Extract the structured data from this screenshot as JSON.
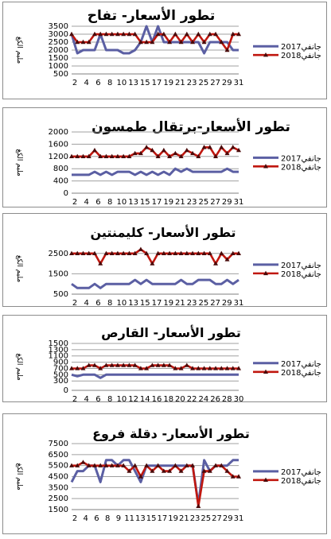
{
  "chart_data": [
    {
      "type": "line",
      "title": "تطور الأسعار- تفاح",
      "ylabel": "مليم الكغ",
      "x": [
        2,
        3,
        4,
        5,
        6,
        7,
        8,
        9,
        10,
        11,
        12,
        13,
        14,
        15,
        16,
        17,
        18,
        19,
        20,
        21,
        22,
        23,
        24,
        25,
        26,
        27,
        28,
        29,
        30,
        31
      ],
      "x_ticks": [
        2,
        4,
        6,
        8,
        10,
        13,
        15,
        17,
        19,
        21,
        23,
        25,
        27,
        29,
        31
      ],
      "ylim": [
        500,
        3500
      ],
      "y_ticks": [
        500,
        1000,
        1500,
        2000,
        2500,
        3000,
        3500
      ],
      "legend": "right",
      "series": [
        {
          "name": "جانفي2017",
          "values": [
            3000,
            1800,
            2000,
            2000,
            2000,
            3000,
            2000,
            2000,
            2000,
            1800,
            1800,
            2000,
            2500,
            3500,
            2500,
            3500,
            2500,
            2500,
            2500,
            2500,
            2500,
            2500,
            2500,
            1800,
            2500,
            2500,
            2500,
            2500,
            2000,
            2000
          ]
        },
        {
          "name": "جانفي2018",
          "values": [
            3000,
            2500,
            2500,
            2500,
            3000,
            3000,
            3000,
            3000,
            3000,
            3000,
            3000,
            3000,
            2500,
            2500,
            2500,
            3000,
            3000,
            2500,
            3000,
            2500,
            3000,
            2500,
            3000,
            2500,
            3000,
            3000,
            2500,
            2000,
            3000,
            3000
          ]
        }
      ]
    },
    {
      "type": "line",
      "title": "تطور الأسعار-برتقال طمسون",
      "ylabel": "مليم الكغ",
      "x": [
        2,
        3,
        4,
        5,
        6,
        7,
        8,
        9,
        10,
        11,
        12,
        13,
        14,
        15,
        16,
        17,
        18,
        19,
        20,
        21,
        22,
        23,
        24,
        25,
        26,
        27,
        28,
        29,
        30,
        31
      ],
      "x_ticks": [
        2,
        4,
        6,
        8,
        10,
        13,
        15,
        17,
        19,
        21,
        23,
        25,
        27,
        29,
        31
      ],
      "ylim": [
        0,
        2000
      ],
      "y_ticks": [
        0,
        400,
        800,
        1200,
        1600,
        2000
      ],
      "legend": "right",
      "series": [
        {
          "name": "جانفي2017",
          "values": [
            600,
            600,
            600,
            600,
            700,
            600,
            700,
            600,
            700,
            700,
            700,
            600,
            700,
            600,
            700,
            600,
            700,
            600,
            800,
            700,
            800,
            700,
            700,
            700,
            700,
            700,
            700,
            800,
            700,
            700
          ]
        },
        {
          "name": "جانفي2018",
          "values": [
            1200,
            1200,
            1200,
            1200,
            1400,
            1200,
            1200,
            1200,
            1200,
            1200,
            1200,
            1300,
            1300,
            1500,
            1400,
            1200,
            1400,
            1200,
            1300,
            1200,
            1400,
            1300,
            1200,
            1500,
            1500,
            1200,
            1500,
            1300,
            1500,
            1400
          ]
        }
      ]
    },
    {
      "type": "line",
      "title": "تطور الأسعار- كليمنتين",
      "ylabel": "مليم الكغ",
      "x": [
        2,
        3,
        4,
        5,
        6,
        7,
        8,
        9,
        10,
        11,
        12,
        13,
        14,
        15,
        16,
        17,
        18,
        19,
        20,
        21,
        22,
        23,
        24,
        25,
        26,
        27,
        28,
        29,
        30,
        31
      ],
      "x_ticks": [
        2,
        4,
        6,
        8,
        10,
        13,
        15,
        17,
        19,
        21,
        23,
        25,
        27,
        29,
        31
      ],
      "ylim": [
        500,
        3000
      ],
      "y_ticks": [
        500,
        1500,
        2500
      ],
      "legend": "right",
      "series": [
        {
          "name": "جانفي2017",
          "values": [
            1000,
            800,
            800,
            800,
            1000,
            800,
            1000,
            1000,
            1000,
            1000,
            1000,
            1200,
            1000,
            1200,
            1000,
            1000,
            1000,
            1000,
            1000,
            1200,
            1000,
            1000,
            1200,
            1200,
            1200,
            1000,
            1000,
            1200,
            1000,
            1200
          ]
        },
        {
          "name": "جانفي2018",
          "values": [
            2500,
            2500,
            2500,
            2500,
            2500,
            2000,
            2500,
            2500,
            2500,
            2500,
            2500,
            2500,
            2700,
            2500,
            2000,
            2500,
            2500,
            2500,
            2500,
            2500,
            2500,
            2500,
            2500,
            2500,
            2500,
            2000,
            2500,
            2200,
            2500,
            2500
          ]
        }
      ]
    },
    {
      "type": "line",
      "title": "تطور الأسعار- القارص",
      "ylabel": "مليم الكغ",
      "x": [
        2,
        3,
        4,
        5,
        6,
        7,
        8,
        9,
        10,
        11,
        12,
        13,
        14,
        15,
        16,
        17,
        18,
        19,
        20,
        21,
        22,
        23,
        24,
        25,
        26,
        27,
        28,
        29,
        30,
        31
      ],
      "x_ticks": [
        2,
        4,
        6,
        8,
        10,
        12,
        14,
        16,
        18,
        20,
        22,
        24,
        26,
        28,
        30
      ],
      "ylim": [
        0,
        1500
      ],
      "y_ticks": [
        0,
        300,
        500,
        700,
        900,
        1100,
        1300,
        1500
      ],
      "legend": "right",
      "series": [
        {
          "name": "جانفي2017",
          "values": [
            500,
            450,
            500,
            500,
            500,
            400,
            500,
            500,
            500,
            500,
            500,
            500,
            500,
            500,
            500,
            500,
            500,
            500,
            500,
            500,
            500,
            500,
            500,
            500,
            500,
            500,
            500,
            500,
            500,
            500
          ]
        },
        {
          "name": "جانفي2018",
          "values": [
            700,
            700,
            700,
            800,
            800,
            700,
            800,
            800,
            800,
            800,
            800,
            800,
            700,
            700,
            800,
            800,
            800,
            800,
            700,
            700,
            800,
            700,
            700,
            700,
            700,
            700,
            700,
            700,
            700,
            700
          ]
        }
      ]
    },
    {
      "type": "line",
      "title": "تطور الأسعار- دقلة فروع",
      "ylabel": "مليم الكغ",
      "x": [
        2,
        3,
        4,
        5,
        6,
        7,
        8,
        9,
        10,
        11,
        12,
        13,
        14,
        15,
        16,
        17,
        18,
        19,
        20,
        21,
        22,
        23,
        24,
        25,
        26,
        27,
        28,
        29,
        30,
        31
      ],
      "x_ticks": [
        2,
        4,
        6,
        8,
        9,
        11,
        13,
        15,
        17,
        19,
        21,
        23,
        25,
        27,
        29,
        31
      ],
      "ylim": [
        1500,
        7500
      ],
      "y_ticks": [
        1500,
        2500,
        3500,
        4500,
        5500,
        6500,
        7500
      ],
      "legend": "right",
      "series": [
        {
          "name": "جانفي2017",
          "values": [
            4000,
            5000,
            5000,
            5500,
            5500,
            4000,
            6000,
            6000,
            5500,
            6000,
            6000,
            5000,
            4000,
            5500,
            5500,
            5500,
            5500,
            5500,
            5500,
            5500,
            5500,
            5500,
            2000,
            6000,
            5000,
            5500,
            5500,
            5500,
            6000,
            6000
          ]
        },
        {
          "name": "جانفي2018",
          "values": [
            5500,
            5500,
            5800,
            5500,
            5500,
            5500,
            5500,
            5500,
            5500,
            5500,
            5000,
            5500,
            4500,
            5500,
            5000,
            5500,
            5000,
            5000,
            5500,
            5000,
            5500,
            5500,
            1800,
            5000,
            5000,
            5500,
            5500,
            5000,
            4500,
            4500
          ]
        }
      ]
    }
  ],
  "colors": {
    "series_2017": "#5b5fa3",
    "series_2018": "#c0170f",
    "marker_2018": "#4a0a0a",
    "grid": "#a0a0a0"
  }
}
